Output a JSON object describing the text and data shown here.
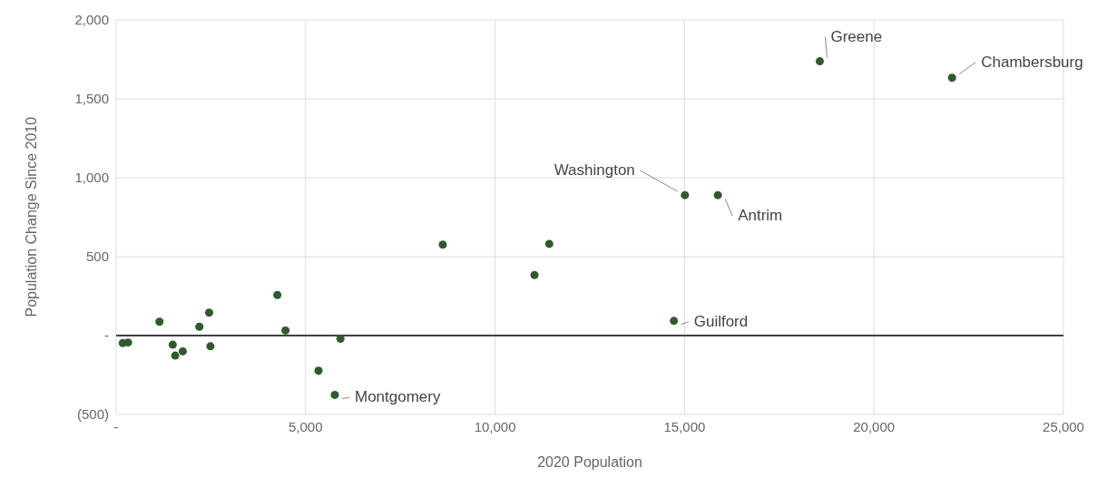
{
  "chart_data": {
    "type": "scatter",
    "xlabel": "2020 Population",
    "ylabel": "Population Change Since 2010",
    "x": [
      174,
      315,
      1144,
      1493,
      1559,
      1758,
      2197,
      2454,
      2488,
      4254,
      4469,
      5920,
      5340,
      5771,
      8620,
      11040,
      11430,
      14720,
      15010,
      15880,
      18570,
      22060
    ],
    "values": [
      -48,
      -44,
      88,
      -58,
      -127,
      -100,
      56,
      145,
      -68,
      257,
      32,
      -20,
      -223,
      -376,
      576,
      384,
      581,
      93,
      890,
      890,
      1738,
      1634
    ],
    "color": "#2e5b2e",
    "marker": "circle",
    "grid": true,
    "legend": false,
    "xlim": [
      0,
      25000
    ],
    "xticks": [
      {
        "value": 0,
        "label": "-"
      },
      {
        "value": 5000,
        "label": "5,000"
      },
      {
        "value": 10000,
        "label": "10,000"
      },
      {
        "value": 15000,
        "label": "15,000"
      },
      {
        "value": 20000,
        "label": "20,000"
      },
      {
        "value": 25000,
        "label": "25,000"
      }
    ],
    "ylim": [
      -500,
      2000
    ],
    "yticks": [
      {
        "value": -500,
        "label": "(500)"
      },
      {
        "value": 0,
        "label": "-"
      },
      500,
      {
        "value": 1000,
        "label": "1,000"
      },
      {
        "value": 1500,
        "label": "1,500"
      },
      {
        "value": 2000,
        "label": "2,000"
      }
    ],
    "ref_lines": [
      {
        "axis": "y",
        "value": 0,
        "color": "#404040"
      }
    ],
    "annotations": [
      {
        "text": "Montgomery",
        "x": 5771,
        "y": -376
      },
      {
        "text": "Guilford",
        "x": 14720,
        "y": 93
      },
      {
        "text": "Washington",
        "x": 15010,
        "y": 890
      },
      {
        "text": "Antrim",
        "x": 15880,
        "y": 890
      },
      {
        "text": "Greene",
        "x": 18570,
        "y": 1738
      },
      {
        "text": "Chambersburg",
        "x": 22060,
        "y": 1634
      }
    ]
  }
}
